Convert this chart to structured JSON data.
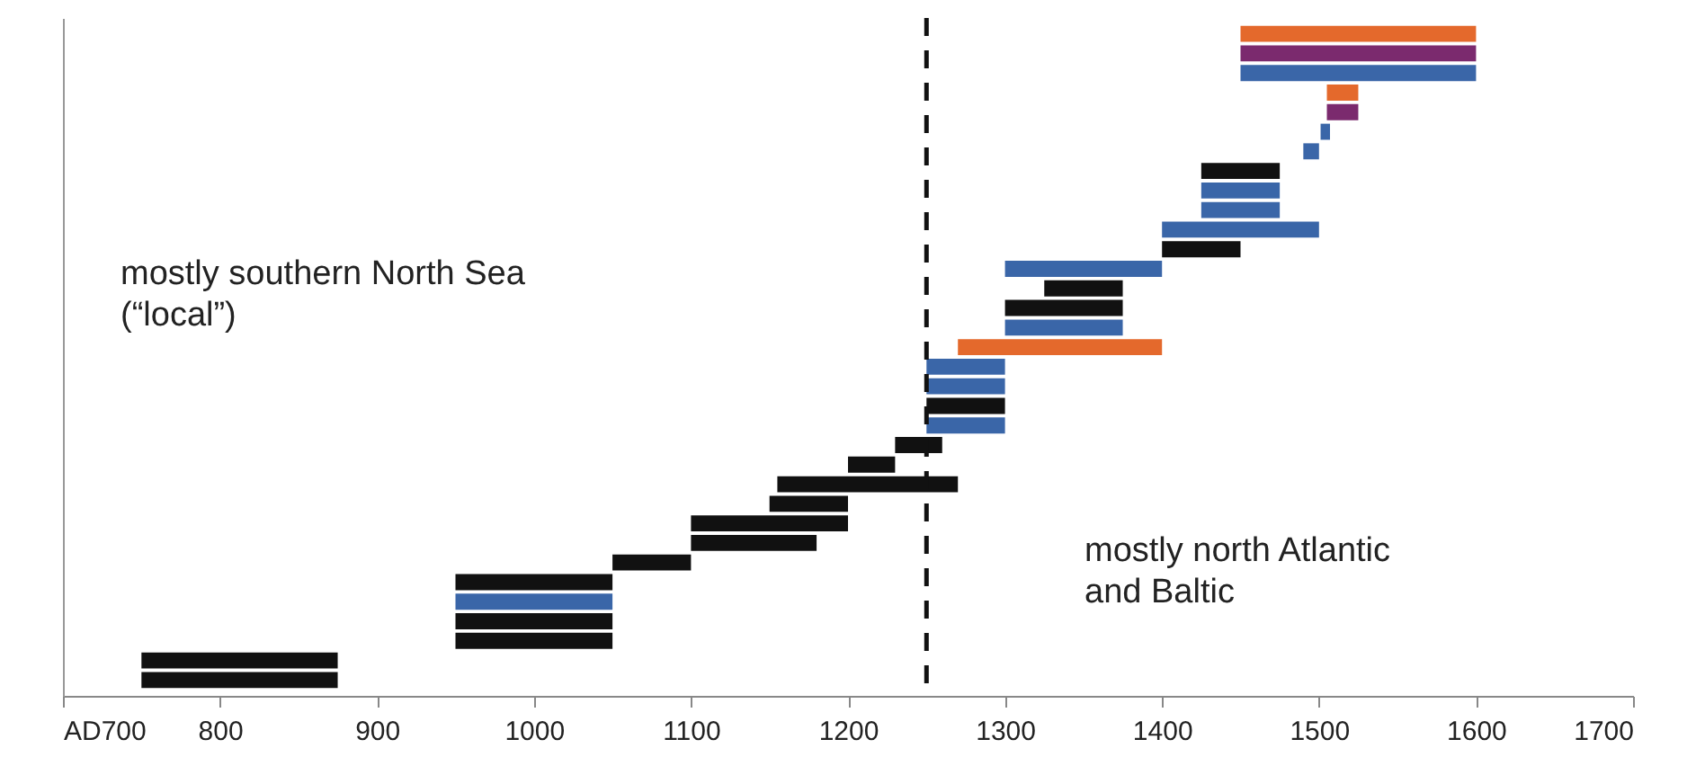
{
  "chart_data": {
    "type": "bar",
    "orientation": "horizontal",
    "tick_labels": "x",
    "grid": false,
    "categories": [
      null,
      null,
      null,
      null,
      null,
      null,
      null,
      null,
      null,
      null,
      null,
      null,
      null,
      null,
      null,
      null,
      null,
      null,
      null,
      null,
      null,
      null,
      null,
      null,
      null,
      null,
      null,
      null,
      null,
      null,
      null,
      null,
      null,
      null
    ],
    "base": [
      1450,
      1450,
      1450,
      1505,
      1505,
      1501,
      1490,
      1425,
      1425,
      1425,
      1400,
      1400,
      1300,
      1325,
      1300,
      1300,
      1270,
      1250,
      1250,
      1250,
      1250,
      1230,
      1200,
      1155,
      1150,
      1100,
      1100,
      1050,
      950,
      950,
      950,
      950,
      750,
      750
    ],
    "values": [
      150,
      150,
      150,
      20,
      20,
      6,
      10,
      50,
      50,
      50,
      100,
      50,
      100,
      50,
      75,
      75,
      130,
      50,
      50,
      50,
      50,
      30,
      30,
      115,
      50,
      100,
      80,
      50,
      100,
      100,
      100,
      100,
      125,
      125
    ],
    "colors": [
      "#e4692c",
      "#7b2a6e",
      "#3a66a8",
      "#e4692c",
      "#7b2a6e",
      "#3a66a8",
      "#3a66a8",
      "#111111",
      "#3a66a8",
      "#3a66a8",
      "#3a66a8",
      "#111111",
      "#3a66a8",
      "#111111",
      "#111111",
      "#3a66a8",
      "#e4692c",
      "#3a66a8",
      "#3a66a8",
      "#111111",
      "#3a66a8",
      "#111111",
      "#111111",
      "#111111",
      "#111111",
      "#111111",
      "#111111",
      "#111111",
      "#111111",
      "#3a66a8",
      "#111111",
      "#111111",
      "#111111",
      "#111111"
    ],
    "xlim": [
      700,
      1700
    ],
    "xticks": [
      {
        "value": 700,
        "label": "AD700"
      },
      800,
      900,
      1000,
      1100,
      1200,
      1300,
      1400,
      1500,
      1600,
      1700
    ],
    "ref_lines": [
      {
        "axis": "x",
        "value": 1250,
        "color": "#111111",
        "line_style": "dashed"
      }
    ],
    "annotations": [
      "mostly southern North Sea\n(“local”)",
      "mostly north Atlantic\nand Baltic"
    ]
  }
}
